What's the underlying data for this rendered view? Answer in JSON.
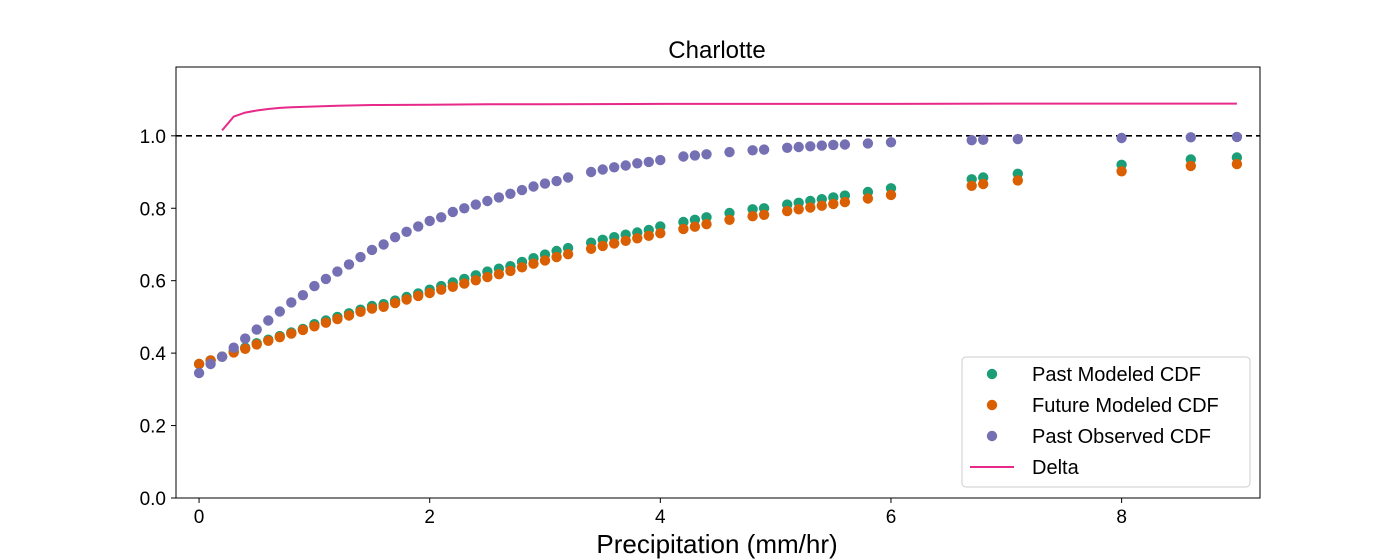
{
  "chart_data": {
    "type": "scatter",
    "title": "Charlotte",
    "xlabel": "Precipitation (mm/hr)",
    "ylabel": "",
    "xlim": [
      -0.2,
      9.2
    ],
    "ylim": [
      0.0,
      1.19
    ],
    "xticks": [
      0,
      2,
      4,
      6,
      8
    ],
    "yticks": [
      0.0,
      0.2,
      0.4,
      0.6,
      0.8,
      1.0
    ],
    "xtick_labels": [
      "0",
      "2",
      "4",
      "6",
      "8"
    ],
    "ytick_labels": [
      "0.0",
      "0.2",
      "0.4",
      "0.6",
      "0.8",
      "1.0"
    ],
    "grid": false,
    "legend_position": "lower-right",
    "reference_line": {
      "y": 1.0,
      "style": "dashed",
      "color": "#000000"
    },
    "x": [
      0,
      0.1,
      0.2,
      0.3,
      0.4,
      0.5,
      0.6,
      0.7,
      0.8,
      0.9,
      1.0,
      1.1,
      1.2,
      1.3,
      1.4,
      1.5,
      1.6,
      1.7,
      1.8,
      1.9,
      2.0,
      2.1,
      2.2,
      2.3,
      2.4,
      2.5,
      2.6,
      2.7,
      2.8,
      2.9,
      3.0,
      3.1,
      3.2,
      3.4,
      3.5,
      3.6,
      3.7,
      3.8,
      3.9,
      4.0,
      4.2,
      4.3,
      4.4,
      4.6,
      4.8,
      4.9,
      5.1,
      5.2,
      5.3,
      5.4,
      5.5,
      5.6,
      5.8,
      6.0,
      6.7,
      6.8,
      7.1,
      8.0,
      8.6,
      9.0
    ],
    "series": [
      {
        "name": "Past Modeled CDF",
        "kind": "scatter",
        "color": "#1b9e77",
        "values": [
          0.37,
          0.38,
          0.39,
          0.405,
          0.415,
          0.427,
          0.437,
          0.447,
          0.457,
          0.467,
          0.48,
          0.49,
          0.5,
          0.51,
          0.52,
          0.53,
          0.535,
          0.545,
          0.555,
          0.565,
          0.575,
          0.585,
          0.595,
          0.605,
          0.615,
          0.625,
          0.633,
          0.64,
          0.652,
          0.662,
          0.672,
          0.682,
          0.69,
          0.705,
          0.713,
          0.72,
          0.727,
          0.733,
          0.74,
          0.75,
          0.762,
          0.768,
          0.775,
          0.787,
          0.797,
          0.8,
          0.81,
          0.815,
          0.82,
          0.825,
          0.83,
          0.835,
          0.845,
          0.855,
          0.88,
          0.885,
          0.895,
          0.92,
          0.935,
          0.94
        ]
      },
      {
        "name": "Future Modeled CDF",
        "kind": "scatter",
        "color": "#d95f02",
        "values": [
          0.37,
          0.38,
          0.39,
          0.402,
          0.412,
          0.424,
          0.434,
          0.444,
          0.454,
          0.464,
          0.474,
          0.484,
          0.494,
          0.504,
          0.514,
          0.523,
          0.528,
          0.538,
          0.548,
          0.558,
          0.566,
          0.575,
          0.583,
          0.592,
          0.601,
          0.61,
          0.618,
          0.627,
          0.637,
          0.647,
          0.656,
          0.665,
          0.673,
          0.688,
          0.696,
          0.703,
          0.71,
          0.717,
          0.724,
          0.731,
          0.743,
          0.749,
          0.756,
          0.768,
          0.778,
          0.782,
          0.792,
          0.797,
          0.802,
          0.807,
          0.812,
          0.817,
          0.827,
          0.837,
          0.862,
          0.867,
          0.877,
          0.902,
          0.917,
          0.922
        ]
      },
      {
        "name": "Past Observed CDF",
        "kind": "scatter",
        "color": "#7570b3",
        "values": [
          0.345,
          0.37,
          0.39,
          0.415,
          0.44,
          0.465,
          0.49,
          0.515,
          0.54,
          0.56,
          0.585,
          0.605,
          0.625,
          0.645,
          0.665,
          0.685,
          0.7,
          0.72,
          0.735,
          0.75,
          0.765,
          0.775,
          0.79,
          0.8,
          0.81,
          0.82,
          0.83,
          0.84,
          0.85,
          0.86,
          0.868,
          0.875,
          0.885,
          0.9,
          0.907,
          0.913,
          0.918,
          0.924,
          0.928,
          0.933,
          0.943,
          0.946,
          0.949,
          0.955,
          0.96,
          0.962,
          0.967,
          0.969,
          0.971,
          0.973,
          0.975,
          0.976,
          0.979,
          0.982,
          0.988,
          0.989,
          0.991,
          0.994,
          0.996,
          0.997
        ]
      }
    ],
    "delta": {
      "name": "Delta",
      "kind": "line",
      "color": "#e7298a",
      "x": [
        0.2,
        0.3,
        0.4,
        0.5,
        0.6,
        0.7,
        0.8,
        1.0,
        1.2,
        1.5,
        2.0,
        2.5,
        3.0,
        4.0,
        5.0,
        6.0,
        7.0,
        8.0,
        9.0
      ],
      "y": [
        1.015,
        1.053,
        1.064,
        1.07,
        1.074,
        1.077,
        1.079,
        1.081,
        1.083,
        1.085,
        1.086,
        1.087,
        1.087,
        1.088,
        1.088,
        1.088,
        1.089,
        1.089,
        1.089
      ]
    }
  }
}
